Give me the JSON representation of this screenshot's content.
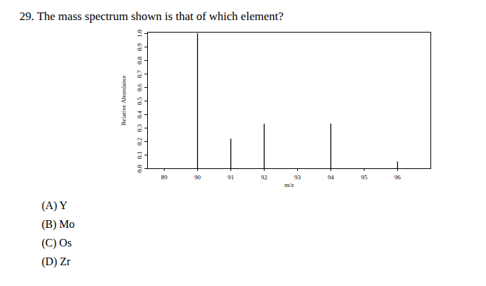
{
  "question": "29. The mass spectrum shown is that of which element?",
  "choices": [
    "(A) Y",
    "(B) Mo",
    "(C) Os",
    "(D) Zr"
  ],
  "chart_data": {
    "type": "bar",
    "x_label": "m/z",
    "y_label": "Relative Abundance",
    "x": [
      90,
      91,
      92,
      94,
      96
    ],
    "values": [
      1.0,
      0.22,
      0.33,
      0.33,
      0.05
    ],
    "color": "#000000",
    "xlim": [
      88.5,
      97
    ],
    "xticks": [
      89,
      90,
      91,
      92,
      93,
      94,
      95,
      96
    ],
    "ylim": [
      0,
      1.01
    ],
    "yticks": [
      {
        "value": 0,
        "label": "0.0"
      },
      0.1,
      0.2,
      0.3,
      0.4,
      0.5,
      0.6,
      0.7,
      0.8,
      0.9,
      {
        "value": 1,
        "label": "1.0"
      }
    ],
    "grid": false
  }
}
